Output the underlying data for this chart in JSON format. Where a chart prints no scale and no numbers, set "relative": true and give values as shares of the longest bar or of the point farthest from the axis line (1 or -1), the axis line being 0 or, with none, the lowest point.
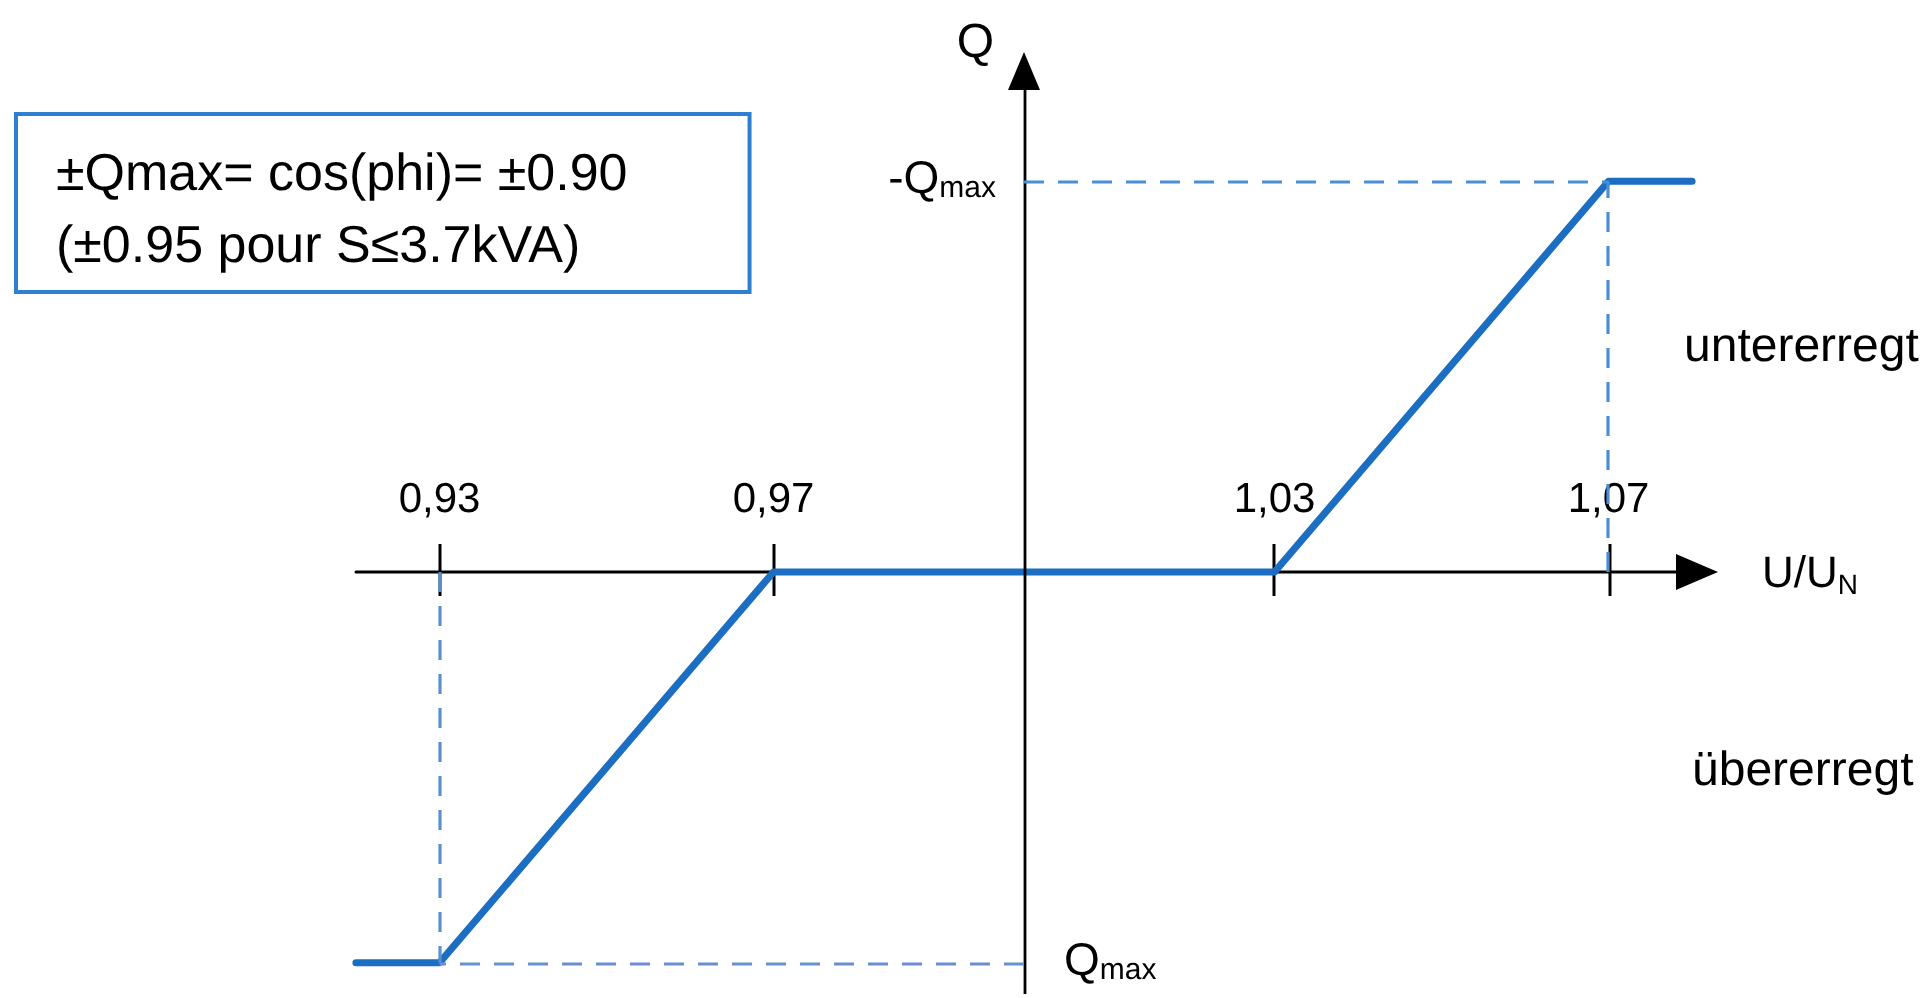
{
  "chart_data": {
    "type": "line",
    "relative": true,
    "xlabel": "U/U$_{N}$",
    "ylabel": "Q",
    "x": [
      0.92,
      0.93,
      0.97,
      1.03,
      1.07,
      1.08
    ],
    "series": [
      {
        "color": "#1b6ec2",
        "values": [
          -1,
          -1,
          0,
          0,
          1,
          1
        ]
      }
    ],
    "xlim": [
      0.92,
      1.08
    ],
    "xticks": [
      {
        "value": 0.93,
        "label": "0,93"
      },
      {
        "value": 0.97,
        "label": "0,97"
      },
      {
        "value": 1.03,
        "label": "1,03"
      },
      {
        "value": 1.07,
        "label": "1,07"
      }
    ],
    "ref_lines": [
      {
        "axis": "x",
        "value": 1,
        "color": "#000000",
        "line_style": "solid"
      },
      {
        "axis": "y",
        "value": 1,
        "label": "-Q$_{max}$",
        "color": "#4a8ed6",
        "line_style": "dashed"
      },
      {
        "axis": "y",
        "value": -1,
        "label": "Q$_{max}$",
        "color": "#6a8fd0",
        "line_style": "dashed"
      },
      {
        "axis": "x",
        "value": 0.93,
        "color": "#5a8fd2",
        "line_style": "dashed"
      },
      {
        "axis": "x",
        "value": 1.07,
        "color": "#4a8ed6",
        "line_style": "dashed"
      }
    ],
    "annotations": [
      "±Qmax= cos(phi)= ±0.90\n(±0.95 pour S≤3.7kVA)",
      "untererregt",
      "übererregt"
    ],
    "grid": false,
    "legend": false,
    "marker": "none",
    "line_style": "solid"
  }
}
